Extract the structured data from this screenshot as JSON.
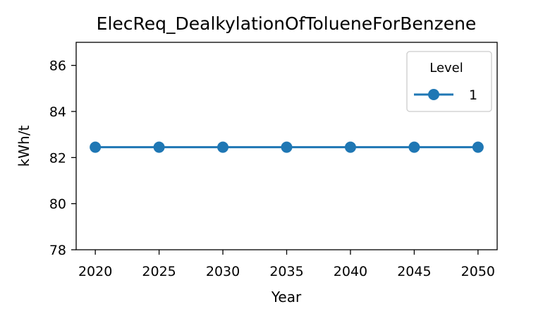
{
  "chart_data": {
    "type": "line",
    "title": "ElecReq_DealkylationOfTolueneForBenzene",
    "xlabel": "Year",
    "ylabel": "kWh/t",
    "xlim": [
      2018.5,
      2051.5
    ],
    "ylim": [
      78,
      87
    ],
    "xticks": [
      2020,
      2025,
      2030,
      2035,
      2040,
      2045,
      2050
    ],
    "yticks": [
      78,
      80,
      82,
      84,
      86
    ],
    "grid": false,
    "legend": {
      "title": "Level",
      "placement": "top-right"
    },
    "series": [
      {
        "name": "1",
        "color": "#1f77b4",
        "marker": "circle",
        "x": [
          2020,
          2025,
          2030,
          2035,
          2040,
          2045,
          2050
        ],
        "y": [
          82.45,
          82.45,
          82.45,
          82.45,
          82.45,
          82.45,
          82.45
        ]
      }
    ]
  }
}
